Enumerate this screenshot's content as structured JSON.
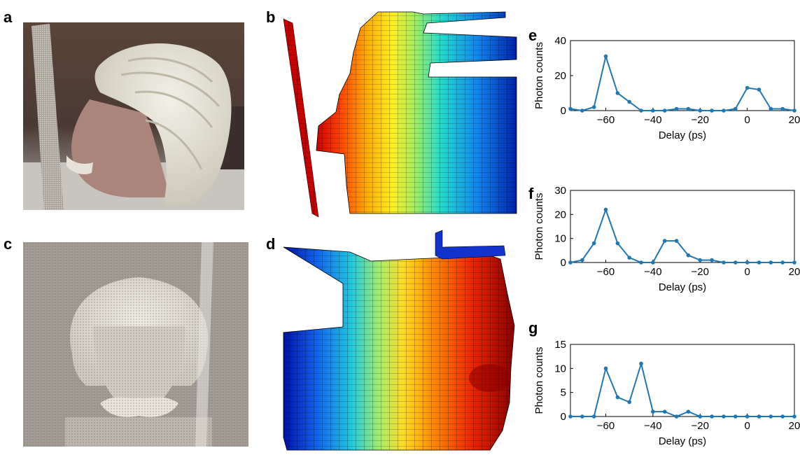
{
  "figure": {
    "panel_labels": [
      "a",
      "b",
      "c",
      "d",
      "e",
      "f",
      "g"
    ]
  },
  "chart_data": [
    {
      "panel": "e",
      "type": "line",
      "xlabel": "Delay (ps)",
      "ylabel": "Photon counts",
      "xlim": [
        -75,
        20
      ],
      "ylim": [
        0,
        40
      ],
      "xticks": [
        -60,
        -40,
        -20,
        0,
        20
      ],
      "yticks": [
        0,
        20,
        40
      ],
      "grid": false,
      "color": "#1f77b4",
      "x": [
        -75,
        -70,
        -65,
        -60,
        -55,
        -50,
        -45,
        -40,
        -35,
        -30,
        -25,
        -20,
        -15,
        -10,
        -5,
        0,
        5,
        10,
        15,
        20
      ],
      "y": [
        1,
        0,
        2,
        31,
        10,
        5,
        0,
        0,
        0,
        1,
        1,
        0,
        0,
        0,
        1,
        13,
        12,
        1,
        1,
        0
      ]
    },
    {
      "panel": "f",
      "type": "line",
      "xlabel": "Delay (ps)",
      "ylabel": "Photon counts",
      "xlim": [
        -75,
        20
      ],
      "ylim": [
        0,
        30
      ],
      "xticks": [
        -60,
        -40,
        -20,
        0,
        20
      ],
      "yticks": [
        0,
        10,
        20,
        30
      ],
      "grid": false,
      "color": "#1f77b4",
      "x": [
        -75,
        -70,
        -65,
        -60,
        -55,
        -50,
        -45,
        -40,
        -35,
        -30,
        -25,
        -20,
        -15,
        -10,
        -5,
        0,
        5,
        10,
        15,
        20
      ],
      "y": [
        0,
        1,
        8,
        22,
        8,
        2,
        0,
        0,
        9,
        9,
        3,
        1,
        1,
        0,
        0,
        0,
        0,
        0,
        0,
        0
      ]
    },
    {
      "panel": "g",
      "type": "line",
      "xlabel": "Delay (ps)",
      "ylabel": "Photon counts",
      "xlim": [
        -75,
        20
      ],
      "ylim": [
        0,
        15
      ],
      "xticks": [
        -60,
        -40,
        -20,
        0,
        20
      ],
      "yticks": [
        0,
        5,
        10,
        15
      ],
      "grid": false,
      "color": "#1f77b4",
      "x": [
        -75,
        -70,
        -65,
        -60,
        -55,
        -50,
        -45,
        -40,
        -35,
        -30,
        -25,
        -20,
        -15,
        -10,
        -5,
        0,
        5,
        10,
        15,
        20
      ],
      "y": [
        0,
        0,
        0,
        10,
        4,
        3,
        11,
        1,
        1,
        0,
        1,
        0,
        0,
        0,
        0,
        0,
        0,
        0,
        0,
        0
      ]
    }
  ]
}
